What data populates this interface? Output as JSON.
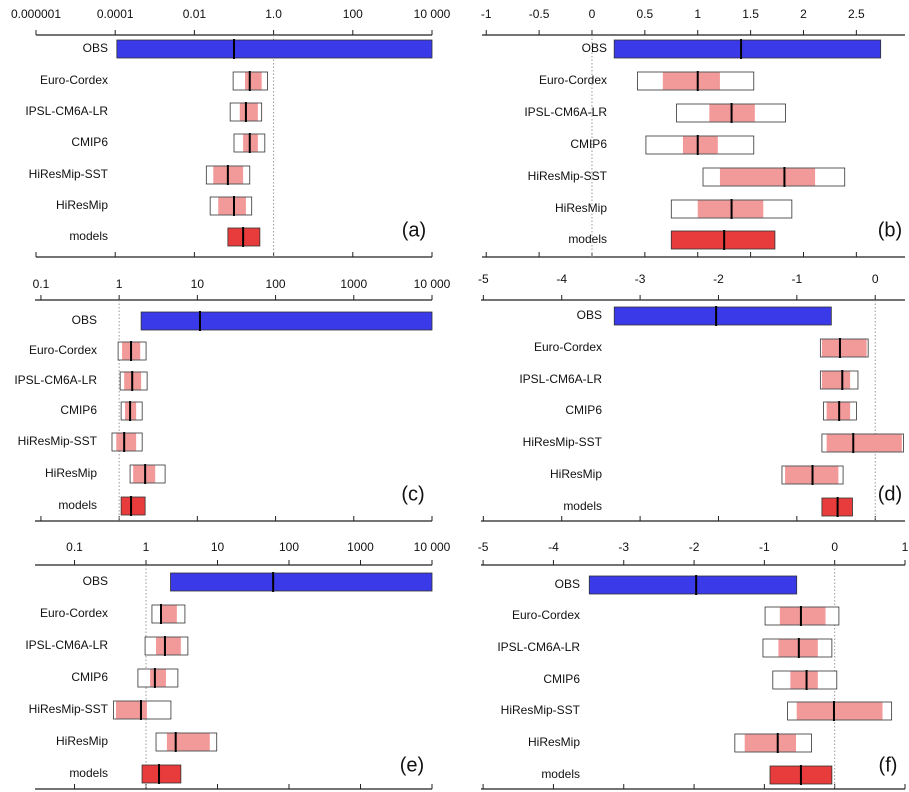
{
  "chart_data": [
    {
      "type": "range",
      "label": "(a)",
      "xscale": "log",
      "xlim": [
        1e-06,
        10000
      ],
      "xticks": [
        1e-06,
        0.0001,
        0.01,
        {
          "value": 1,
          "label": "1.0"
        },
        100,
        {
          "value": 10000,
          "label": "10 000"
        }
      ],
      "reference": 1,
      "categories": [
        "OBS",
        "Euro-Cordex",
        "IPSL-CM6A-LR",
        "CMIP6",
        "HiResMip-SST",
        "HiResMip",
        "models"
      ],
      "low": [
        0.00011,
        0.095,
        0.08,
        0.1,
        0.02,
        0.025,
        0.07
      ],
      "high": [
        10000,
        0.7,
        0.5,
        0.6,
        0.25,
        0.28,
        0.45
      ],
      "inner_low": [
        null,
        0.19,
        0.14,
        0.17,
        0.03,
        0.04,
        null
      ],
      "inner_high": [
        null,
        0.5,
        0.4,
        0.4,
        0.17,
        0.2,
        null
      ],
      "median": [
        0.1,
        0.25,
        0.2,
        0.25,
        0.07,
        0.1,
        0.17
      ],
      "bar_colors": [
        "#3a3ae8",
        "#ffffff",
        "#ffffff",
        "#ffffff",
        "#ffffff",
        "#ffffff",
        "#e83c3c"
      ],
      "inner_color": "#f29a9a"
    },
    {
      "type": "range",
      "label": "(b)",
      "xscale": "linear",
      "xlim": [
        -1.04,
        2.96
      ],
      "xticks": [
        -1,
        -0.5,
        0,
        0.5,
        1,
        1.5,
        2,
        2.5
      ],
      "reference": 0,
      "categories": [
        "OBS",
        "Euro-Cordex",
        "IPSL-CM6A-LR",
        "CMIP6",
        "HiResMip-SST",
        "HiResMip",
        "models"
      ],
      "low": [
        0.21,
        0.43,
        0.8,
        0.51,
        1.05,
        0.75,
        0.75
      ],
      "high": [
        2.73,
        1.53,
        1.83,
        1.53,
        2.39,
        1.89,
        1.73
      ],
      "inner_low": [
        null,
        0.67,
        1.11,
        0.86,
        1.21,
        1.0,
        null
      ],
      "inner_high": [
        null,
        1.21,
        1.54,
        1.19,
        2.11,
        1.62,
        null
      ],
      "median": [
        1.41,
        1.0,
        1.32,
        1.0,
        1.82,
        1.32,
        1.25
      ],
      "bar_colors": [
        "#3a3ae8",
        "#ffffff",
        "#ffffff",
        "#ffffff",
        "#ffffff",
        "#ffffff",
        "#e83c3c"
      ],
      "inner_color": "#f29a9a"
    },
    {
      "type": "range",
      "label": "(c)",
      "xscale": "log",
      "xlim": [
        0.084,
        10000
      ],
      "xticks": [
        0.1,
        1,
        10,
        100,
        1000,
        {
          "value": 10000,
          "label": "10 000"
        }
      ],
      "reference": 1,
      "categories": [
        "OBS",
        "Euro-Cordex",
        "IPSL-CM6A-LR",
        "CMIP6",
        "HiResMip-SST",
        "HiResMip",
        "models"
      ],
      "low": [
        1.91,
        0.97,
        1.03,
        1.06,
        0.81,
        1.38,
        1.06
      ],
      "high": [
        10000,
        2.21,
        2.28,
        1.97,
        1.97,
        3.87,
        2.15
      ],
      "inner_low": [
        null,
        1.09,
        1.16,
        1.19,
        0.92,
        1.51,
        null
      ],
      "inner_high": [
        null,
        1.86,
        1.91,
        1.65,
        1.65,
        2.89,
        null
      ],
      "median": [
        10.8,
        1.42,
        1.47,
        1.38,
        1.16,
        2.15,
        1.42
      ],
      "bar_colors": [
        "#3a3ae8",
        "#ffffff",
        "#ffffff",
        "#ffffff",
        "#ffffff",
        "#ffffff",
        "#e83c3c"
      ],
      "inner_color": "#f29a9a"
    },
    {
      "type": "range",
      "label": "(d)",
      "xscale": "linear",
      "xlim": [
        -5.03,
        0.38
      ],
      "xticks": [
        -5,
        -4,
        -3,
        -2,
        -1,
        0
      ],
      "reference": 0,
      "categories": [
        "OBS",
        "Euro-Cordex",
        "IPSL-CM6A-LR",
        "CMIP6",
        "HiResMip-SST",
        "HiResMip",
        "models"
      ],
      "low": [
        -3.33,
        -0.7,
        -0.7,
        -0.66,
        -0.68,
        -1.19,
        -0.68
      ],
      "high": [
        -0.56,
        -0.09,
        -0.22,
        -0.24,
        0.36,
        -0.41,
        -0.29
      ],
      "inner_low": [
        null,
        -0.68,
        -0.68,
        -0.62,
        -0.62,
        -1.15,
        null
      ],
      "inner_high": [
        null,
        -0.11,
        -0.32,
        -0.32,
        0.34,
        -0.47,
        null
      ],
      "median": [
        -2.03,
        -0.45,
        -0.42,
        -0.46,
        -0.28,
        -0.8,
        -0.48
      ],
      "bar_colors": [
        "#3a3ae8",
        "#ffffff",
        "#ffffff",
        "#ffffff",
        "#ffffff",
        "#ffffff",
        "#e83c3c"
      ],
      "inner_color": "#f29a9a"
    },
    {
      "type": "range",
      "label": "(e)",
      "xscale": "log",
      "xlim": [
        0.028,
        10000
      ],
      "xticks": [
        0.1,
        1,
        10,
        100,
        1000,
        {
          "value": 10000,
          "label": "10 000"
        }
      ],
      "reference": 1,
      "categories": [
        "OBS",
        "Euro-Cordex",
        "IPSL-CM6A-LR",
        "CMIP6",
        "HiResMip-SST",
        "HiResMip",
        "models"
      ],
      "low": [
        2.2,
        1.21,
        0.97,
        0.77,
        0.35,
        1.38,
        0.88
      ],
      "high": [
        10000,
        3.5,
        3.85,
        2.79,
        2.23,
        9.75,
        3.07
      ],
      "inner_low": [
        null,
        1.67,
        1.38,
        1.14,
        0.38,
        1.96,
        null
      ],
      "inner_high": [
        null,
        2.7,
        3.07,
        1.9,
        1.03,
        7.8,
        null
      ],
      "median": [
        60,
        1.62,
        1.84,
        1.33,
        0.85,
        2.6,
        1.52
      ],
      "bar_colors": [
        "#3a3ae8",
        "#ffffff",
        "#ffffff",
        "#ffffff",
        "#ffffff",
        "#ffffff",
        "#e83c3c"
      ],
      "inner_color": "#f29a9a"
    },
    {
      "type": "range",
      "label": "(f)",
      "xscale": "linear",
      "xlim": [
        -5.03,
        1
      ],
      "xticks": [
        -5,
        -4,
        -3,
        -2,
        -1,
        0,
        1
      ],
      "reference": 0,
      "categories": [
        "OBS",
        "Euro-Cordex",
        "IPSL-CM6A-LR",
        "CMIP6",
        "HiResMip-SST",
        "HiResMip",
        "models"
      ],
      "low": [
        -3.49,
        -0.99,
        -1.02,
        -0.88,
        -0.67,
        -1.42,
        -0.92
      ],
      "high": [
        -0.54,
        0.06,
        -0.04,
        0.03,
        0.81,
        -0.33,
        -0.04
      ],
      "inner_low": [
        null,
        -0.78,
        -0.8,
        -0.63,
        -0.54,
        -1.28,
        null
      ],
      "inner_high": [
        null,
        -0.13,
        -0.24,
        -0.24,
        0.68,
        -0.55,
        null
      ],
      "median": [
        -1.97,
        -0.48,
        -0.51,
        -0.4,
        -0.01,
        -0.81,
        -0.48
      ],
      "bar_colors": [
        "#3a3ae8",
        "#ffffff",
        "#ffffff",
        "#ffffff",
        "#ffffff",
        "#ffffff",
        "#e83c3c"
      ],
      "inner_color": "#f29a9a"
    }
  ]
}
